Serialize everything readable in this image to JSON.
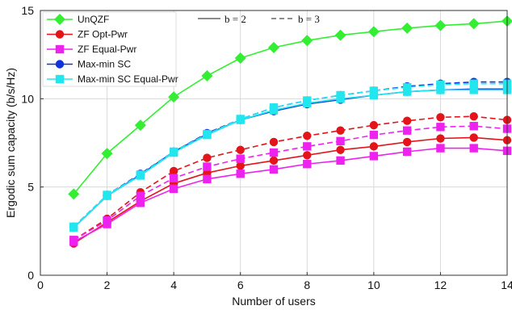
{
  "chart_data": {
    "type": "line",
    "xlabel": "Number of users",
    "ylabel": "Ergodic sum capacity (b/s/Hz)",
    "xlim": [
      0,
      14
    ],
    "ylim": [
      0,
      15
    ],
    "xticks": [
      0,
      2,
      4,
      6,
      8,
      10,
      12,
      14
    ],
    "yticks": [
      0,
      5,
      10,
      15
    ],
    "grid": true,
    "legend_placement": "top-left",
    "line_style_legend": {
      "solid_label": "b = 2",
      "dashed_label": "b = 3"
    },
    "series": [
      {
        "name": "UnQZF",
        "color": "#33ee33",
        "marker": "diamond",
        "line": "solid",
        "x": [
          1,
          2,
          3,
          4,
          5,
          6,
          7,
          8,
          9,
          10,
          11,
          12,
          13,
          14
        ],
        "y": [
          4.6,
          6.9,
          8.5,
          10.1,
          11.3,
          12.3,
          12.9,
          13.3,
          13.6,
          13.8,
          14.0,
          14.15,
          14.25,
          14.4
        ]
      },
      {
        "name": "ZF Opt-Pwr",
        "color": "#e4141b",
        "marker": "circle",
        "line": "solid",
        "x": [
          1,
          2,
          3,
          4,
          5,
          6,
          7,
          8,
          9,
          10,
          11,
          12,
          13,
          14
        ],
        "y": [
          1.8,
          3.0,
          4.2,
          5.2,
          5.8,
          6.2,
          6.5,
          6.8,
          7.1,
          7.3,
          7.55,
          7.75,
          7.8,
          7.65
        ]
      },
      {
        "name": "ZF Opt-Pwr (b = 3)",
        "color": "#e4141b",
        "marker": "circle",
        "line": "dashed",
        "x": [
          1,
          2,
          3,
          4,
          5,
          6,
          7,
          8,
          9,
          10,
          11,
          12,
          13,
          14
        ],
        "y": [
          2.0,
          3.2,
          4.7,
          5.9,
          6.65,
          7.1,
          7.55,
          7.9,
          8.2,
          8.5,
          8.75,
          8.95,
          9.0,
          8.8
        ]
      },
      {
        "name": "ZF Equal-Pwr",
        "color": "#ee22ee",
        "marker": "square",
        "line": "solid",
        "x": [
          1,
          2,
          3,
          4,
          5,
          6,
          7,
          8,
          9,
          10,
          11,
          12,
          13,
          14
        ],
        "y": [
          1.9,
          2.9,
          4.1,
          4.9,
          5.45,
          5.75,
          6.0,
          6.3,
          6.5,
          6.75,
          7.0,
          7.2,
          7.2,
          7.05
        ]
      },
      {
        "name": "ZF Equal-Pwr (b = 3)",
        "color": "#ee22ee",
        "marker": "square",
        "line": "dashed",
        "x": [
          1,
          2,
          3,
          4,
          5,
          6,
          7,
          8,
          9,
          10,
          11,
          12,
          13,
          14
        ],
        "y": [
          2.0,
          3.1,
          4.5,
          5.5,
          6.15,
          6.6,
          6.95,
          7.3,
          7.6,
          7.95,
          8.2,
          8.4,
          8.45,
          8.3
        ]
      },
      {
        "name": "Max-min SC",
        "color": "#1133dd",
        "marker": "circle",
        "line": "solid",
        "x": [
          1,
          2,
          3,
          4,
          5,
          6,
          7,
          8,
          9,
          10,
          11,
          12,
          13,
          14
        ],
        "y": [
          2.7,
          4.5,
          5.7,
          7.0,
          8.0,
          8.8,
          9.3,
          9.7,
          9.95,
          10.2,
          10.4,
          10.5,
          10.55,
          10.55
        ]
      },
      {
        "name": "Max-min SC (b = 3)",
        "color": "#1133dd",
        "marker": "circle",
        "line": "dashed",
        "x": [
          1,
          2,
          3,
          4,
          5,
          6,
          7,
          8,
          9,
          10,
          11,
          12,
          13,
          14
        ],
        "y": [
          2.75,
          4.55,
          5.75,
          7.0,
          8.05,
          8.85,
          9.5,
          9.9,
          10.2,
          10.45,
          10.7,
          10.85,
          10.95,
          10.95
        ]
      },
      {
        "name": "Max-min SC Equal-Pwr",
        "color": "#22e6ee",
        "marker": "square",
        "line": "solid",
        "x": [
          1,
          2,
          3,
          4,
          5,
          6,
          7,
          8,
          9,
          10,
          11,
          12,
          13,
          14
        ],
        "y": [
          2.7,
          4.5,
          5.65,
          6.95,
          7.95,
          8.8,
          9.35,
          9.75,
          10.0,
          10.2,
          10.4,
          10.5,
          10.5,
          10.5
        ]
      },
      {
        "name": "Max-min SC Equal-Pwr (b = 3)",
        "color": "#22e6ee",
        "marker": "square",
        "line": "dashed",
        "x": [
          1,
          2,
          3,
          4,
          5,
          6,
          7,
          8,
          9,
          10,
          11,
          12,
          13,
          14
        ],
        "y": [
          2.75,
          4.55,
          5.7,
          7.0,
          8.0,
          8.85,
          9.5,
          9.9,
          10.2,
          10.45,
          10.65,
          10.8,
          10.85,
          10.85
        ]
      }
    ],
    "legend_entries": [
      {
        "label": "UnQZF",
        "color": "#33ee33",
        "marker": "diamond"
      },
      {
        "label": "ZF Opt-Pwr",
        "color": "#e4141b",
        "marker": "circle"
      },
      {
        "label": "ZF Equal-Pwr",
        "color": "#ee22ee",
        "marker": "square"
      },
      {
        "label": "Max-min SC",
        "color": "#1133dd",
        "marker": "circle"
      },
      {
        "label": "Max-min SC Equal-Pwr",
        "color": "#22e6ee",
        "marker": "square"
      }
    ]
  }
}
